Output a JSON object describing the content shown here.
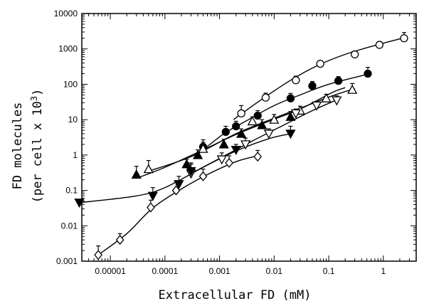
{
  "chart_data": {
    "type": "scatter",
    "xlabel": "Extracellular FD (mM)",
    "ylabel": {
      "line1": "FD molecules",
      "line2": "(per cell x 10",
      "superscript": "3",
      "close": ")"
    },
    "xscale": "log",
    "yscale": "log",
    "xlim": [
      3e-06,
      4
    ],
    "ylim": [
      0.001,
      10000
    ],
    "x_ticks": [
      {
        "value": 1e-05,
        "label": "0.00001"
      },
      {
        "value": 0.0001,
        "label": "0.0001"
      },
      {
        "value": 0.001,
        "label": "0.001"
      },
      {
        "value": 0.01,
        "label": "0.01"
      },
      {
        "value": 0.1,
        "label": "0.1"
      },
      {
        "value": 1,
        "label": "1"
      }
    ],
    "y_ticks": [
      {
        "value": 0.001,
        "label": "0.001"
      },
      {
        "value": 0.01,
        "label": "0.01"
      },
      {
        "value": 0.1,
        "label": "0.1"
      },
      {
        "value": 1,
        "label": "1"
      },
      {
        "value": 10,
        "label": "10"
      },
      {
        "value": 100,
        "label": "100"
      },
      {
        "value": 1000,
        "label": "1000"
      },
      {
        "value": 10000,
        "label": "10000"
      }
    ],
    "grid": false,
    "legend": "none",
    "series": [
      {
        "marker": "open-circle",
        "x": [
          0.0025,
          0.007,
          0.025,
          0.07,
          0.3,
          0.85,
          2.4
        ],
        "y": [
          15,
          42,
          130,
          380,
          700,
          1300,
          2000
        ],
        "err": [
          10,
          14,
          40,
          80,
          120,
          220,
          900
        ],
        "fit": [
          [
            0.0018,
            10
          ],
          [
            0.006,
            38
          ],
          [
            0.02,
            130
          ],
          [
            0.06,
            330
          ],
          [
            0.2,
            700
          ],
          [
            0.7,
            1250
          ],
          [
            2.5,
            2100
          ]
        ]
      },
      {
        "marker": "filled-circle",
        "x": [
          0.0005,
          0.0013,
          0.002,
          0.005,
          0.02,
          0.05,
          0.15,
          0.52
        ],
        "y": [
          1.7,
          4.5,
          6.5,
          13,
          40,
          90,
          125,
          200
        ],
        "err": [
          1.0,
          2.0,
          2.5,
          5,
          15,
          30,
          40,
          100
        ],
        "fit": [
          [
            0.0005,
            1.4
          ],
          [
            0.0012,
            4
          ],
          [
            0.003,
            9
          ],
          [
            0.01,
            25
          ],
          [
            0.03,
            50
          ],
          [
            0.1,
            100
          ],
          [
            0.5,
            190
          ]
        ]
      },
      {
        "marker": "filled-triangle-up",
        "x": [
          3e-05,
          0.00025,
          0.0004,
          0.0012,
          0.0025,
          0.006,
          0.02
        ],
        "y": [
          0.28,
          0.55,
          1.0,
          2.0,
          4,
          7,
          12
        ],
        "err": [
          0.2,
          0.2,
          0.4,
          0.8,
          1.5,
          3,
          5
        ],
        "fit": [
          [
            3e-05,
            0.22
          ],
          [
            0.0001,
            0.45
          ],
          [
            0.0005,
            1.4
          ],
          [
            0.002,
            3.8
          ],
          [
            0.008,
            9
          ],
          [
            0.03,
            20
          ],
          [
            0.12,
            60
          ],
          [
            0.2,
            80
          ]
        ]
      },
      {
        "marker": "open-triangle-up",
        "x": [
          5e-05,
          0.0005,
          0.004,
          0.01,
          0.03,
          0.09,
          0.27
        ],
        "y": [
          0.4,
          1.5,
          9,
          10,
          18,
          40,
          70
        ],
        "err": [
          0.3,
          0.8,
          3,
          4,
          6,
          12,
          35
        ],
        "fit": [
          [
            5e-05,
            0.35
          ],
          [
            0.0003,
            0.9
          ],
          [
            0.002,
            4
          ],
          [
            0.01,
            11
          ],
          [
            0.04,
            25
          ],
          [
            0.12,
            48
          ],
          [
            0.3,
            75
          ]
        ]
      },
      {
        "marker": "open-triangle-down",
        "x": [
          0.0003,
          0.0011,
          0.003,
          0.008,
          0.025,
          0.06,
          0.14
        ],
        "y": [
          0.3,
          0.75,
          2,
          4,
          15,
          25,
          35
        ],
        "err": [
          0.25,
          0.4,
          1,
          1.5,
          5,
          8,
          12
        ],
        "fit": [
          [
            0.0003,
            0.3
          ],
          [
            0.001,
            0.8
          ],
          [
            0.004,
            2.5
          ],
          [
            0.015,
            7
          ],
          [
            0.05,
            18
          ],
          [
            0.15,
            38
          ]
        ]
      },
      {
        "marker": "filled-triangle-down",
        "x": [
          2.7e-06,
          6e-05,
          0.00018,
          0.0003,
          0.002,
          0.02
        ],
        "y": [
          0.045,
          0.07,
          0.15,
          0.35,
          1.4,
          4
        ],
        "err": [
          0.01,
          0.05,
          0.1,
          0.25,
          0.6,
          2.5
        ],
        "fit": [
          [
            2.7e-06,
            0.045
          ],
          [
            3e-05,
            0.07
          ],
          [
            0.0001,
            0.12
          ],
          [
            0.0005,
            0.45
          ],
          [
            0.002,
            1.3
          ],
          [
            0.008,
            2.9
          ],
          [
            0.02,
            4
          ]
        ]
      },
      {
        "marker": "open-diamond",
        "x": [
          6e-06,
          1.5e-05,
          5.5e-05,
          0.00016,
          0.0005,
          0.0015,
          0.005
        ],
        "y": [
          0.0015,
          0.004,
          0.033,
          0.1,
          0.25,
          0.6,
          0.9
        ],
        "err": [
          0.0012,
          0.002,
          0.02,
          0.08,
          0.15,
          0.35,
          0.45
        ],
        "fit": [
          [
            6e-06,
            0.0015
          ],
          [
            2e-05,
            0.006
          ],
          [
            6e-05,
            0.032
          ],
          [
            0.0002,
            0.11
          ],
          [
            0.0006,
            0.28
          ],
          [
            0.002,
            0.65
          ],
          [
            0.005,
            0.95
          ]
        ]
      }
    ]
  }
}
